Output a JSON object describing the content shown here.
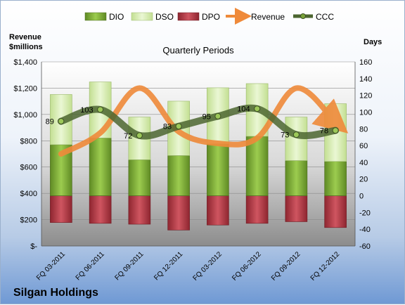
{
  "chart_data": {
    "type": "bar",
    "subtitle": "Quarterly Periods",
    "company": "Silgan Holdings",
    "left_axis_title": [
      "Revenue",
      "$millions"
    ],
    "right_axis_title": "Days",
    "categories": [
      "FQ 03-2011",
      "FQ 06-2011",
      "FQ 09-2011",
      "FQ 12-2011",
      "FQ 03-2012",
      "FQ 06-2012",
      "FQ 09-2012",
      "FQ 12-2012"
    ],
    "left_ticks": [
      "$-",
      "$200",
      "$400",
      "$600",
      "$800",
      "$1,000",
      "$1,200",
      "$1,400"
    ],
    "left_ylim": [
      0,
      1400
    ],
    "right_ticks": [
      "-60",
      "-40",
      "-20",
      "0",
      "20",
      "40",
      "60",
      "80",
      "100",
      "120",
      "140",
      "160"
    ],
    "right_ylim": [
      -60,
      160
    ],
    "legend": [
      "DIO",
      "DSO",
      "DPO",
      "Revenue",
      "CCC"
    ],
    "series": [
      {
        "name": "DIO",
        "axis": "right",
        "values": [
          61,
          69,
          43,
          48,
          62,
          71,
          42,
          41
        ]
      },
      {
        "name": "DSO",
        "axis": "right",
        "values": [
          60,
          67,
          51,
          65,
          67,
          63,
          52,
          69
        ]
      },
      {
        "name": "DPO",
        "axis": "right",
        "values": [
          -32,
          -33,
          -34,
          -41,
          -35,
          -33,
          -31,
          -38
        ]
      },
      {
        "name": "Revenue",
        "axis": "left",
        "values": [
          700,
          860,
          1200,
          870,
          780,
          820,
          1200,
          940
        ]
      },
      {
        "name": "CCC",
        "axis": "right",
        "values": [
          89,
          103,
          72,
          83,
          95,
          104,
          73,
          78
        ]
      }
    ],
    "ccc_labels": [
      "89",
      "103",
      "72",
      "83",
      "95",
      "104",
      "73",
      "78"
    ],
    "colors": {
      "DIO": "#7aa33a",
      "DSO": "#d6edb0",
      "DPO": "#b83a42",
      "Revenue": "#ef8a3a",
      "CCC": "#4c6630"
    },
    "grid": true
  }
}
